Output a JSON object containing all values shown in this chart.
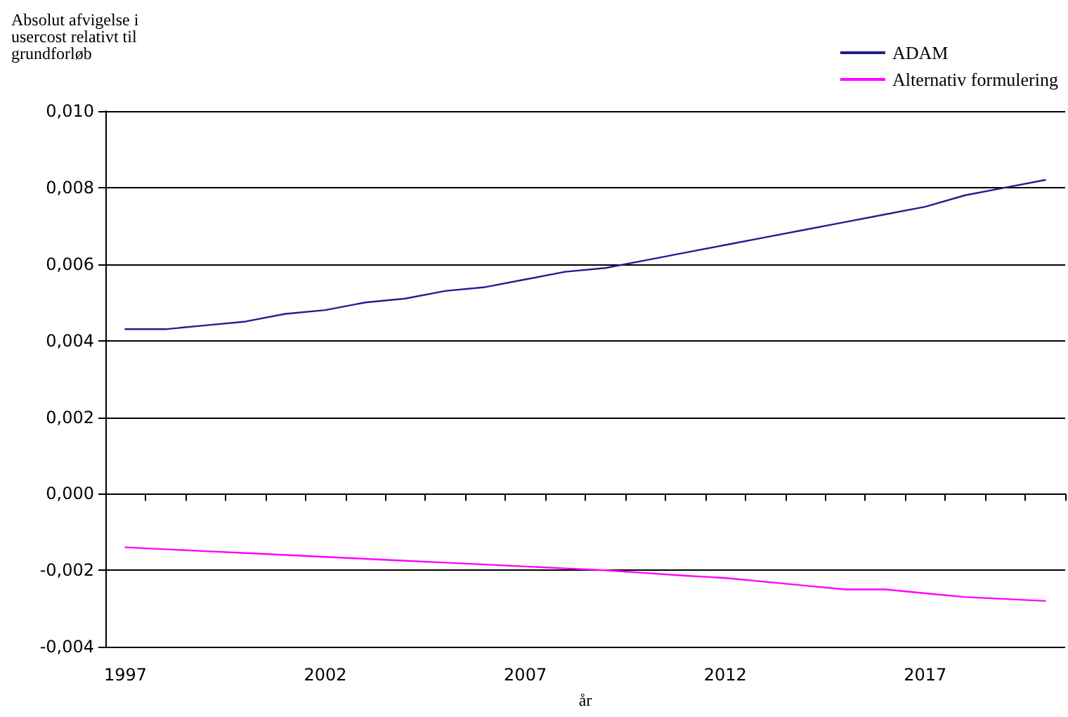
{
  "chart_data": {
    "type": "line",
    "ylabel": "Absolut afvigelse i\nusercost relativt til\ngrundforløb",
    "xlabel": "år",
    "categories": [
      "1997",
      null,
      null,
      null,
      null,
      "2002",
      null,
      null,
      null,
      null,
      "2007",
      null,
      null,
      null,
      null,
      "2012",
      null,
      null,
      null,
      null,
      "2017",
      null,
      null,
      null
    ],
    "series": [
      {
        "name": "ADAM",
        "color": "#1f1f8f",
        "values": [
          0.0043,
          0.0043,
          0.0044,
          0.0045,
          0.0047,
          0.0048,
          0.005,
          0.0051,
          0.0053,
          0.0054,
          0.0056,
          0.0058,
          0.0059,
          0.0061,
          0.0063,
          0.0065,
          0.0067,
          0.0069,
          0.0071,
          0.0073,
          0.0075,
          0.0078,
          0.008,
          0.0082
        ]
      },
      {
        "name": "Alternativ formulering",
        "color": "#ff00ff",
        "values": [
          -0.0014,
          -0.00145,
          -0.0015,
          -0.00155,
          -0.0016,
          -0.00165,
          -0.0017,
          -0.00175,
          -0.0018,
          -0.00185,
          -0.0019,
          -0.00195,
          -0.002,
          -0.00207,
          -0.00214,
          -0.0022,
          -0.0023,
          -0.0024,
          -0.0025,
          -0.0025,
          -0.0026,
          -0.0027,
          -0.00275,
          -0.0028
        ]
      }
    ],
    "ylim": [
      -0.004,
      0.01
    ],
    "yticks": [
      {
        "value": -0.004,
        "label": "-0,004"
      },
      {
        "value": -0.002,
        "label": "-0,002"
      },
      {
        "value": 0,
        "label": "0,000"
      },
      {
        "value": 0.002,
        "label": "0,002"
      },
      {
        "value": 0.004,
        "label": "0,004"
      },
      {
        "value": 0.006,
        "label": "0,006"
      },
      {
        "value": 0.008,
        "label": "0,008"
      },
      {
        "value": 0.01,
        "label": "0,010"
      }
    ],
    "grid": "y",
    "legend": "top right",
    "marker": "none",
    "line_style": "solid"
  }
}
